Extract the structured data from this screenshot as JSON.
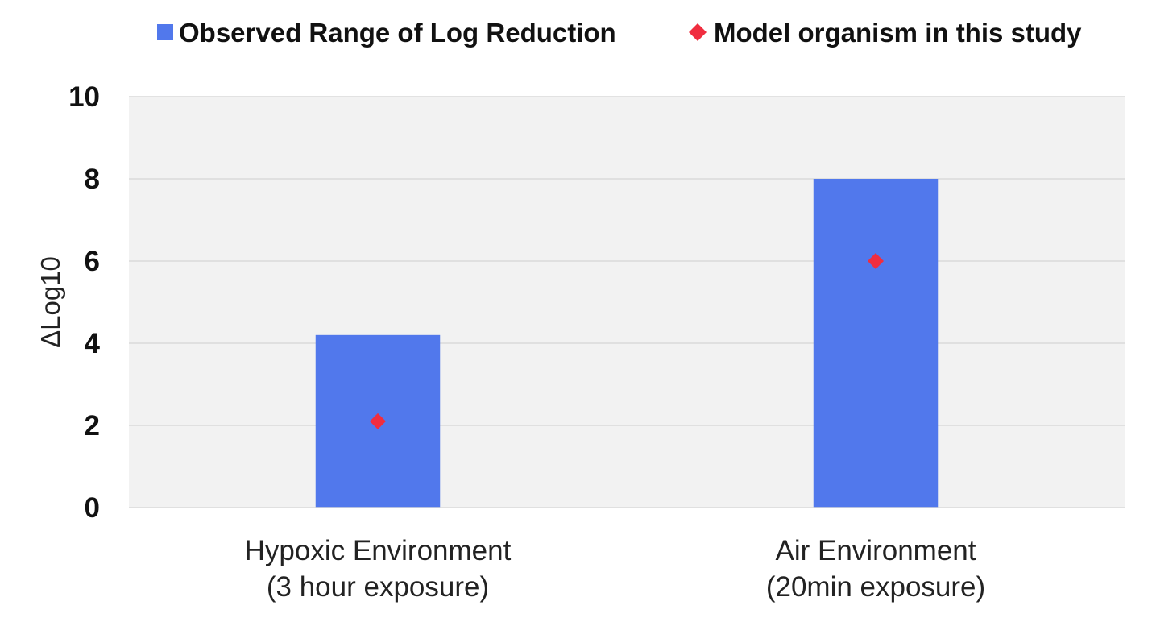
{
  "chart_data": {
    "type": "bar",
    "categories": [
      [
        "Hypoxic Environment",
        "(3 hour exposure)"
      ],
      [
        "Air Environment",
        "(20min exposure)"
      ]
    ],
    "series": [
      {
        "name": "Observed Range of Log Reduction",
        "kind": "bar",
        "color": "#5178EC",
        "values": [
          4.2,
          8.0
        ]
      },
      {
        "name": "Model organism in this study",
        "kind": "marker",
        "marker": "diamond",
        "color": "#F02D3F",
        "values": [
          2.1,
          6.0
        ]
      }
    ],
    "ylabel": "ΔLog10",
    "xlabel": "",
    "ylim": [
      0,
      10
    ],
    "yticks": [
      0,
      2,
      4,
      6,
      8,
      10
    ],
    "grid": true,
    "plot_background": "#F2F2F2",
    "gridline_color": "#D9D9D9",
    "legend_position": "top"
  }
}
